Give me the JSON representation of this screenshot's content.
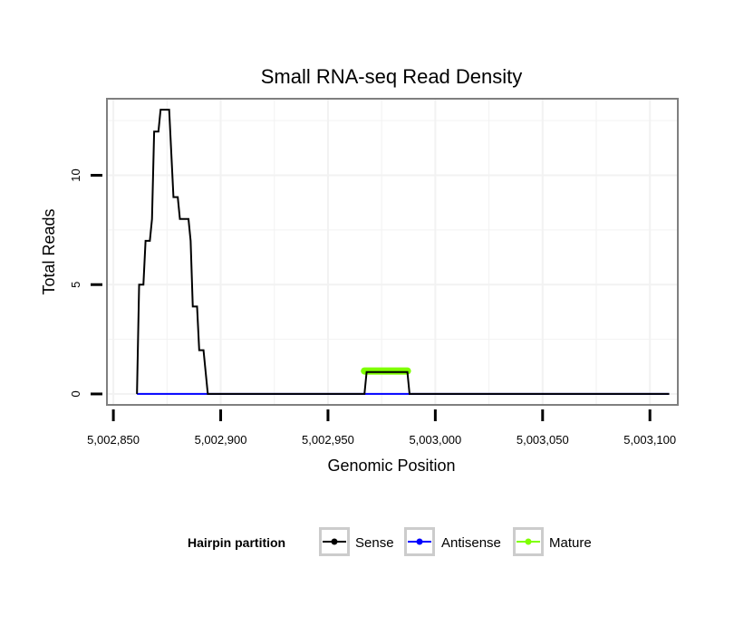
{
  "chart_data": {
    "type": "line",
    "title": "Small RNA-seq Read Density",
    "xlabel": "Genomic Position",
    "ylabel": "Total Reads",
    "xlim": [
      5002847,
      5003113
    ],
    "ylim": [
      -0.5,
      13.5
    ],
    "x_ticks": [
      5002850,
      5002900,
      5002950,
      5003000,
      5003050,
      5003100
    ],
    "x_tick_labels": [
      "5,002,850",
      "5,002,900",
      "5,002,950",
      "5,003,000",
      "5,003,050",
      "5,003,100"
    ],
    "y_ticks": [
      0,
      5,
      10
    ],
    "y_tick_labels": [
      "0",
      "5",
      "10"
    ],
    "grid": true,
    "legend": {
      "title": "Hairpin partition",
      "position": "bottom"
    },
    "series": [
      {
        "name": "Sense",
        "color": "#000000",
        "points": [
          [
            5002861,
            0
          ],
          [
            5002862,
            5
          ],
          [
            5002864,
            5
          ],
          [
            5002865,
            7
          ],
          [
            5002867,
            7
          ],
          [
            5002868,
            8
          ],
          [
            5002869,
            12
          ],
          [
            5002871,
            12
          ],
          [
            5002872,
            13
          ],
          [
            5002876,
            13
          ],
          [
            5002877,
            11
          ],
          [
            5002878,
            9
          ],
          [
            5002880,
            9
          ],
          [
            5002881,
            8
          ],
          [
            5002885,
            8
          ],
          [
            5002886,
            7
          ],
          [
            5002887,
            4
          ],
          [
            5002889,
            4
          ],
          [
            5002890,
            2
          ],
          [
            5002892,
            2
          ],
          [
            5002893,
            1
          ],
          [
            5002894,
            0
          ],
          [
            5002967,
            0
          ],
          [
            5002968,
            1
          ],
          [
            5002987,
            1
          ],
          [
            5002988,
            0
          ],
          [
            5003109,
            0
          ]
        ]
      },
      {
        "name": "Antisense",
        "color": "#0000ff",
        "points": [
          [
            5002861,
            0
          ],
          [
            5003109,
            0
          ]
        ]
      },
      {
        "name": "Mature",
        "color": "#7fff00",
        "points": [
          [
            5002967,
            1.05
          ],
          [
            5002987,
            1.05
          ]
        ]
      }
    ]
  }
}
